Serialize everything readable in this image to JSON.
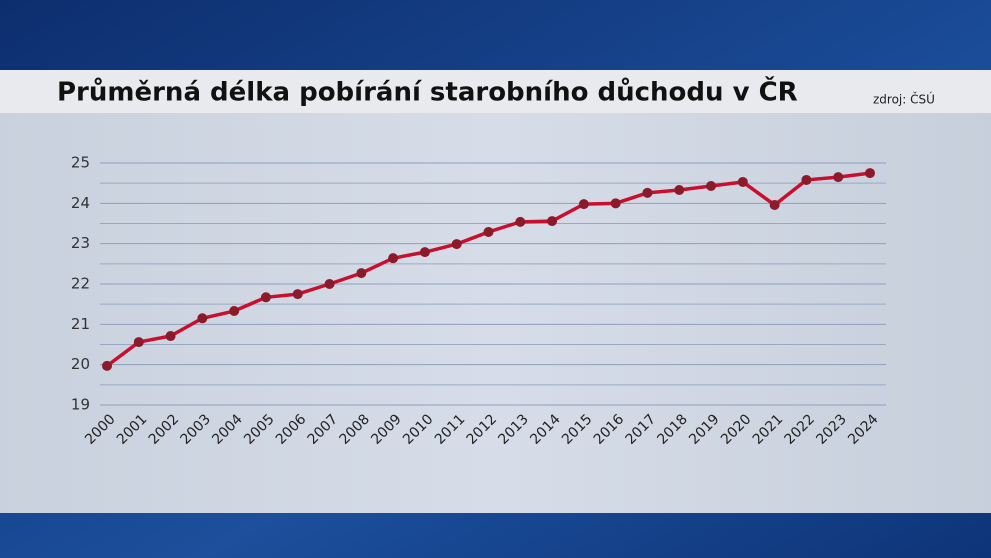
{
  "chart_data": {
    "type": "line",
    "title": "Průměrná délka pobírání starobního důchodu v ČR",
    "source": "zdroj: ČSÚ",
    "categories": [
      "2000",
      "2001",
      "2002",
      "2003",
      "2004",
      "2005",
      "2006",
      "2007",
      "2008",
      "2009",
      "2010",
      "2011",
      "2012",
      "2013",
      "2014",
      "2015",
      "2016",
      "2017",
      "2018",
      "2019",
      "2020",
      "2021",
      "2022",
      "2023",
      "2024"
    ],
    "series": [
      {
        "color": "#c8102e",
        "values": [
          19.97,
          20.56,
          20.71,
          21.15,
          21.33,
          21.67,
          21.75,
          22.0,
          22.27,
          22.64,
          22.79,
          22.99,
          23.29,
          23.54,
          23.56,
          23.98,
          24.0,
          24.26,
          24.33,
          24.43,
          24.53,
          23.96,
          24.58,
          24.65,
          24.75
        ]
      }
    ],
    "ylim": [
      19,
      25
    ],
    "yticks": [
      19,
      20,
      21,
      22,
      23,
      24,
      25
    ],
    "grid": true,
    "minor_grid": true
  }
}
